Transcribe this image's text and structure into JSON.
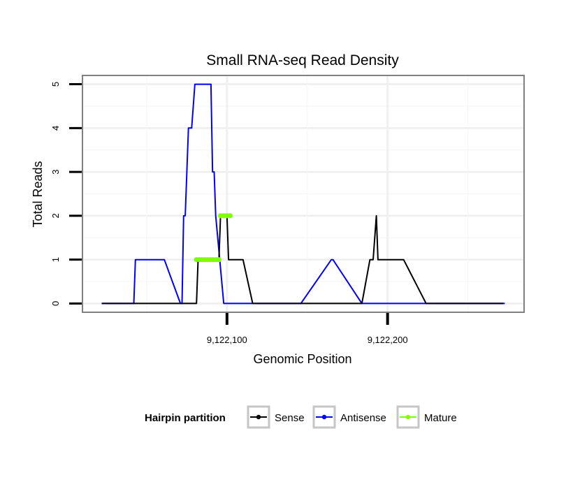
{
  "chart_data": {
    "type": "line",
    "title": "Small RNA-seq Read Density",
    "xlabel": "Genomic Position",
    "ylabel": "Total Reads",
    "xlim": [
      9122010,
      9122285
    ],
    "ylim": [
      -0.2,
      5.2
    ],
    "x_ticks": [
      9122100,
      9122200
    ],
    "x_tick_labels": [
      "9,122,100",
      "9,122,200"
    ],
    "y_ticks": [
      0,
      1,
      2,
      3,
      4,
      5
    ],
    "y_tick_labels": [
      "0",
      "1",
      "2",
      "3",
      "4",
      "5"
    ],
    "grid": true,
    "legend": {
      "title": "Hairpin partition",
      "position": "bottom",
      "entries": [
        "Sense",
        "Antisense",
        "Mature"
      ]
    },
    "colors": {
      "Sense": "#000000",
      "Antisense": "#0000ff",
      "Mature": "#7fff00"
    },
    "series": [
      {
        "name": "Antisense",
        "x": [
          9122022,
          9122042,
          9122043,
          9122061,
          9122071,
          9122072,
          9122073,
          9122074,
          9122075,
          9122076,
          9122078,
          9122080,
          9122081,
          9122082,
          9122083,
          9122084,
          9122085,
          9122088,
          9122089,
          9122090,
          9122091,
          9122092,
          9122093,
          9122098,
          9122146,
          9122165,
          9122166,
          9122184,
          9122273
        ],
        "y": [
          0,
          0,
          1,
          1,
          0,
          0,
          2,
          2,
          3,
          4,
          4,
          5,
          5,
          5,
          5,
          5,
          5,
          5,
          5,
          5,
          3,
          3,
          2,
          0,
          0,
          1,
          1,
          0,
          0
        ]
      },
      {
        "name": "Sense",
        "x": [
          9122022,
          9122081,
          9122082,
          9122095,
          9122096,
          9122100,
          9122101,
          9122110,
          9122116,
          9122129,
          9122150,
          9122151,
          9122165,
          9122167,
          9122172,
          9122174,
          9122184,
          9122189,
          9122190,
          9122191,
          9122193,
          9122194,
          9122208,
          9122210,
          9122224,
          9122272
        ],
        "y": [
          0,
          0,
          1,
          1,
          2,
          2,
          1,
          1,
          0,
          0,
          0,
          0,
          0,
          0,
          0,
          0,
          0,
          1,
          1,
          1,
          2,
          1,
          1,
          1,
          0,
          0
        ]
      },
      {
        "name": "Mature",
        "segments": [
          {
            "x": [
              9122081,
              9122095
            ],
            "y": 1
          },
          {
            "x": [
              9122096,
              9122102
            ],
            "y": 2
          }
        ]
      }
    ]
  }
}
